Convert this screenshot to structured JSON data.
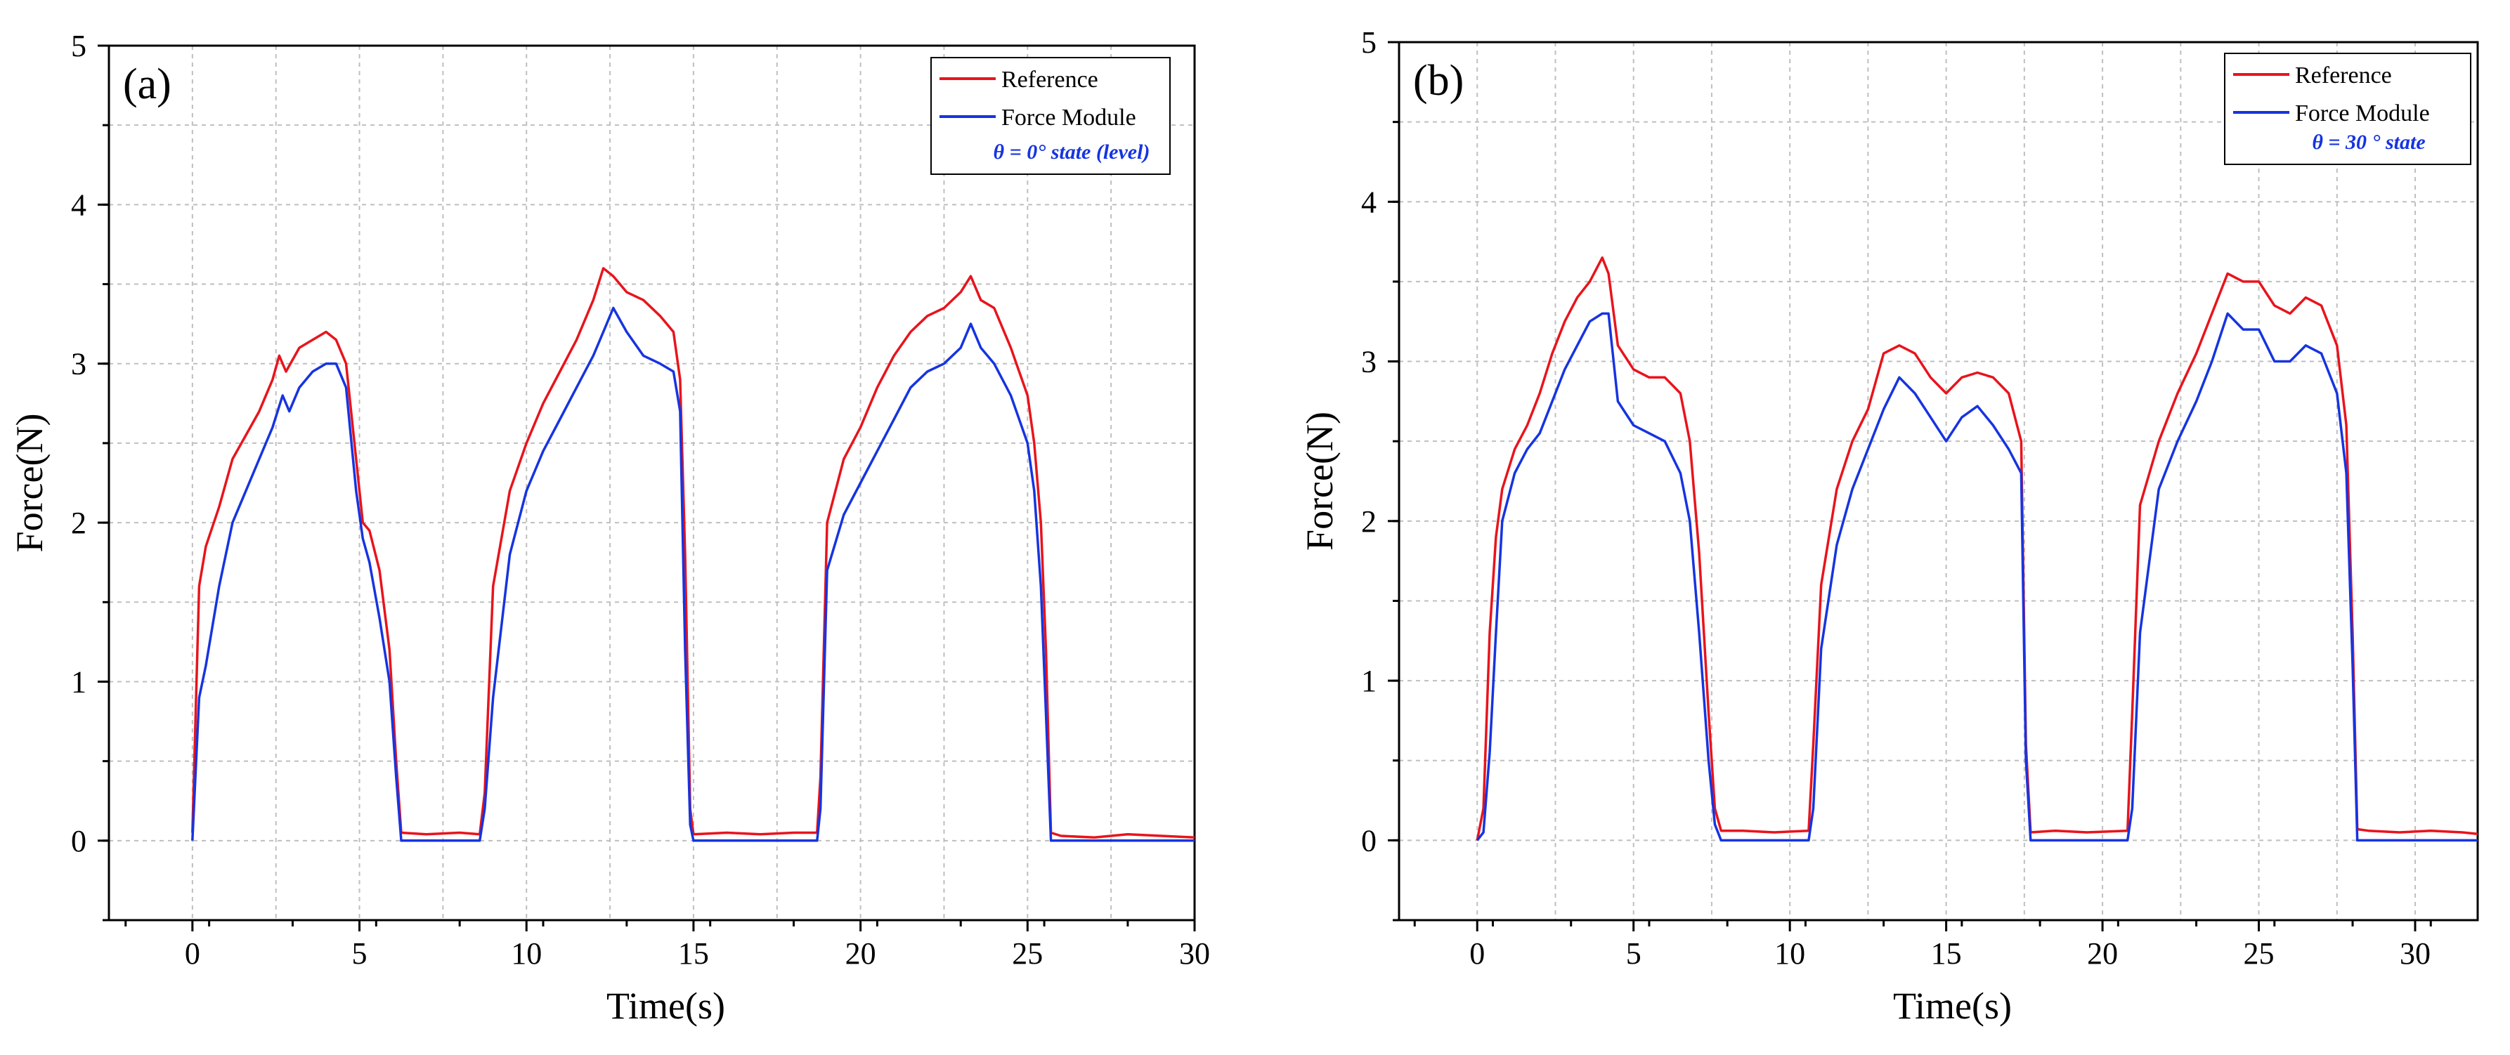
{
  "chart_data": [
    {
      "type": "line",
      "panel_label": "(a)",
      "xlabel": "Time(s)",
      "ylabel": "Force(N)",
      "xlim": [
        -2.5,
        30
      ],
      "ylim": [
        -0.5,
        5
      ],
      "xticks": [
        0,
        5,
        10,
        15,
        20,
        25,
        30
      ],
      "yticks": [
        0,
        1,
        2,
        3,
        4,
        5
      ],
      "grid": true,
      "legend_position": "top-right",
      "legend_note": "θ = 0° state (level)",
      "series": [
        {
          "name": "Reference",
          "color": "#e8141c",
          "x": [
            0,
            0.2,
            0.4,
            0.8,
            1.2,
            1.6,
            2.0,
            2.4,
            2.6,
            2.8,
            3.2,
            3.6,
            4.0,
            4.3,
            4.6,
            4.9,
            5.1,
            5.3,
            5.6,
            5.9,
            6.1,
            6.25,
            7.0,
            8.0,
            8.6,
            8.75,
            9.0,
            9.5,
            10.0,
            10.5,
            11.0,
            11.5,
            12.0,
            12.3,
            12.6,
            13.0,
            13.5,
            14.0,
            14.4,
            14.6,
            14.75,
            14.9,
            15.0,
            16.0,
            17.0,
            18.0,
            18.7,
            18.8,
            19.0,
            19.5,
            20.0,
            20.5,
            21.0,
            21.5,
            22.0,
            22.5,
            23.0,
            23.3,
            23.6,
            24.0,
            24.5,
            25.0,
            25.2,
            25.4,
            25.55,
            25.7,
            26.0,
            27.0,
            28.0,
            29.0,
            30.0
          ],
          "values": [
            0.05,
            1.6,
            1.85,
            2.1,
            2.4,
            2.55,
            2.7,
            2.9,
            3.05,
            2.95,
            3.1,
            3.15,
            3.2,
            3.15,
            3.0,
            2.4,
            2.0,
            1.95,
            1.7,
            1.2,
            0.5,
            0.05,
            0.04,
            0.05,
            0.04,
            0.3,
            1.6,
            2.2,
            2.5,
            2.75,
            2.95,
            3.15,
            3.4,
            3.6,
            3.55,
            3.45,
            3.4,
            3.3,
            3.2,
            2.9,
            1.8,
            0.2,
            0.04,
            0.05,
            0.04,
            0.05,
            0.05,
            0.4,
            2.0,
            2.4,
            2.6,
            2.85,
            3.05,
            3.2,
            3.3,
            3.35,
            3.45,
            3.55,
            3.4,
            3.35,
            3.1,
            2.8,
            2.5,
            2.0,
            1.2,
            0.05,
            0.03,
            0.02,
            0.04,
            0.03,
            0.02
          ]
        },
        {
          "name": "Force Module",
          "color": "#1634e0",
          "x": [
            0,
            0.2,
            0.4,
            0.8,
            1.2,
            1.6,
            2.0,
            2.4,
            2.7,
            2.9,
            3.2,
            3.6,
            4.0,
            4.3,
            4.6,
            4.9,
            5.1,
            5.3,
            5.6,
            5.9,
            6.1,
            6.25,
            7.0,
            8.0,
            8.6,
            8.75,
            9.0,
            9.5,
            10.0,
            10.5,
            11.0,
            11.5,
            12.0,
            12.3,
            12.6,
            13.0,
            13.5,
            14.0,
            14.4,
            14.6,
            14.75,
            14.9,
            15.0,
            16.0,
            17.0,
            18.0,
            18.7,
            18.8,
            19.0,
            19.5,
            20.0,
            20.5,
            21.0,
            21.5,
            22.0,
            22.5,
            23.0,
            23.3,
            23.6,
            24.0,
            24.5,
            25.0,
            25.2,
            25.4,
            25.55,
            25.7,
            26.0,
            27.0,
            28.0,
            29.0,
            30.0
          ],
          "values": [
            0.0,
            0.9,
            1.1,
            1.6,
            2.0,
            2.2,
            2.4,
            2.6,
            2.8,
            2.7,
            2.85,
            2.95,
            3.0,
            3.0,
            2.85,
            2.2,
            1.9,
            1.75,
            1.4,
            1.0,
            0.4,
            0.0,
            0.0,
            0.0,
            0.0,
            0.2,
            0.9,
            1.8,
            2.2,
            2.45,
            2.65,
            2.85,
            3.05,
            3.2,
            3.35,
            3.2,
            3.05,
            3.0,
            2.95,
            2.7,
            1.2,
            0.1,
            0.0,
            0.0,
            0.0,
            0.0,
            0.0,
            0.2,
            1.7,
            2.05,
            2.25,
            2.45,
            2.65,
            2.85,
            2.95,
            3.0,
            3.1,
            3.25,
            3.1,
            3.0,
            2.8,
            2.5,
            2.2,
            1.6,
            0.8,
            0.0,
            0.0,
            0.0,
            0.0,
            0.0,
            0.0
          ]
        }
      ]
    },
    {
      "type": "line",
      "panel_label": "(b)",
      "xlabel": "Time(s)",
      "ylabel": "Force(N)",
      "xlim": [
        -2.5,
        32
      ],
      "ylim": [
        -0.5,
        5
      ],
      "xticks": [
        0,
        5,
        10,
        15,
        20,
        25,
        30
      ],
      "yticks": [
        0,
        1,
        2,
        3,
        4,
        5
      ],
      "grid": true,
      "legend_position": "top-right",
      "legend_note": "θ = 30 ° state",
      "series": [
        {
          "name": "Reference",
          "color": "#e8141c",
          "x": [
            0,
            0.2,
            0.4,
            0.6,
            0.8,
            1.2,
            1.6,
            2.0,
            2.4,
            2.8,
            3.2,
            3.6,
            4.0,
            4.2,
            4.5,
            5.0,
            5.5,
            6.0,
            6.5,
            6.8,
            7.1,
            7.4,
            7.6,
            7.8,
            8.5,
            9.5,
            10.6,
            10.75,
            11.0,
            11.5,
            12.0,
            12.5,
            13.0,
            13.5,
            14.0,
            14.5,
            15.0,
            15.5,
            16.0,
            16.5,
            17.0,
            17.4,
            17.55,
            17.7,
            18.5,
            19.5,
            20.8,
            20.95,
            21.2,
            21.8,
            22.4,
            23.0,
            23.5,
            24.0,
            24.5,
            25.0,
            25.5,
            26.0,
            26.5,
            27.0,
            27.5,
            27.8,
            28.0,
            28.15,
            28.5,
            29.5,
            30.5,
            31.5,
            32.0
          ],
          "values": [
            0.0,
            0.2,
            1.3,
            1.9,
            2.2,
            2.45,
            2.6,
            2.8,
            3.05,
            3.25,
            3.4,
            3.5,
            3.65,
            3.55,
            3.1,
            2.95,
            2.9,
            2.9,
            2.8,
            2.5,
            1.8,
            0.8,
            0.2,
            0.06,
            0.06,
            0.05,
            0.06,
            0.6,
            1.6,
            2.2,
            2.5,
            2.7,
            3.05,
            3.1,
            3.05,
            2.9,
            2.8,
            2.9,
            2.93,
            2.9,
            2.8,
            2.5,
            0.6,
            0.05,
            0.06,
            0.05,
            0.06,
            0.8,
            2.1,
            2.5,
            2.8,
            3.05,
            3.3,
            3.55,
            3.5,
            3.5,
            3.35,
            3.3,
            3.4,
            3.35,
            3.1,
            2.6,
            1.3,
            0.07,
            0.06,
            0.05,
            0.06,
            0.05,
            0.04
          ]
        },
        {
          "name": "Force Module",
          "color": "#1634e0",
          "x": [
            0,
            0.2,
            0.4,
            0.6,
            0.8,
            1.2,
            1.6,
            2.0,
            2.4,
            2.8,
            3.2,
            3.6,
            4.0,
            4.2,
            4.5,
            5.0,
            5.5,
            6.0,
            6.5,
            6.8,
            7.1,
            7.4,
            7.6,
            7.8,
            8.5,
            9.5,
            10.6,
            10.75,
            11.0,
            11.5,
            12.0,
            12.5,
            13.0,
            13.5,
            14.0,
            14.5,
            15.0,
            15.5,
            16.0,
            16.5,
            17.0,
            17.4,
            17.55,
            17.7,
            18.5,
            19.5,
            20.8,
            20.95,
            21.2,
            21.8,
            22.4,
            23.0,
            23.5,
            24.0,
            24.5,
            25.0,
            25.5,
            26.0,
            26.5,
            27.0,
            27.5,
            27.8,
            28.0,
            28.15,
            28.5,
            29.5,
            30.5,
            31.5,
            32.0
          ],
          "values": [
            0.0,
            0.05,
            0.55,
            1.3,
            2.0,
            2.3,
            2.45,
            2.55,
            2.75,
            2.95,
            3.1,
            3.25,
            3.3,
            3.3,
            2.75,
            2.6,
            2.55,
            2.5,
            2.3,
            2.0,
            1.3,
            0.5,
            0.1,
            0.0,
            0.0,
            0.0,
            0.0,
            0.2,
            1.2,
            1.85,
            2.2,
            2.45,
            2.7,
            2.9,
            2.8,
            2.65,
            2.5,
            2.65,
            2.72,
            2.6,
            2.45,
            2.3,
            0.5,
            0.0,
            0.0,
            0.0,
            0.0,
            0.2,
            1.3,
            2.2,
            2.5,
            2.75,
            3.0,
            3.3,
            3.2,
            3.2,
            3.0,
            3.0,
            3.1,
            3.05,
            2.8,
            2.3,
            1.1,
            0.0,
            0.0,
            0.0,
            0.0,
            0.0,
            0.0
          ]
        }
      ]
    }
  ]
}
